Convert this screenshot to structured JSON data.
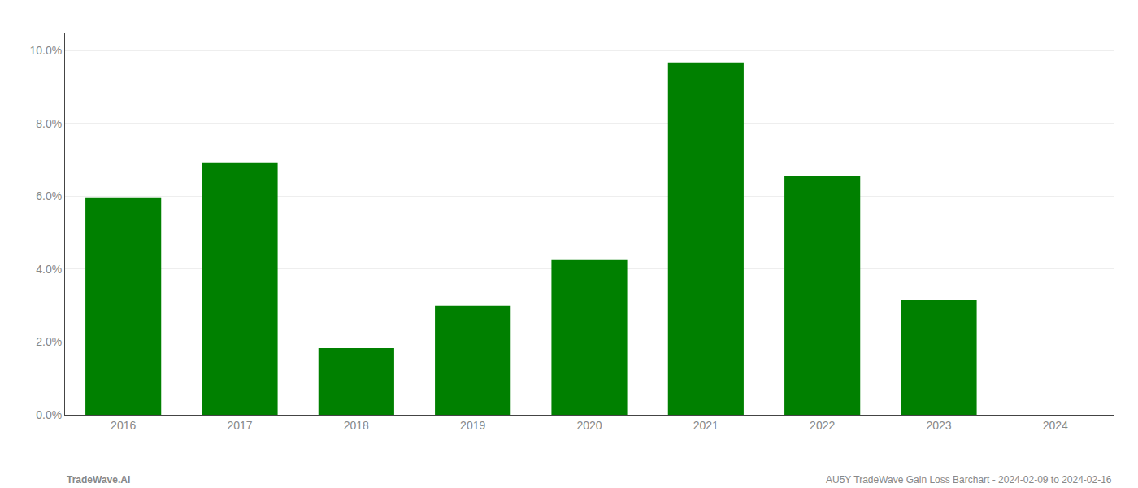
{
  "chart_data": {
    "type": "bar",
    "categories": [
      "2016",
      "2017",
      "2018",
      "2019",
      "2020",
      "2021",
      "2022",
      "2023",
      "2024"
    ],
    "values": [
      0.0597,
      0.0693,
      0.0183,
      0.03,
      0.0425,
      0.0968,
      0.0655,
      0.0315,
      0.0
    ],
    "color": "#008000",
    "ylim": [
      0,
      0.105
    ],
    "yticks": [
      {
        "value": 0.0,
        "label": "0.0%"
      },
      {
        "value": 0.02,
        "label": "2.0%"
      },
      {
        "value": 0.04,
        "label": "4.0%"
      },
      {
        "value": 0.06,
        "label": "6.0%"
      },
      {
        "value": 0.08,
        "label": "8.0%"
      },
      {
        "value": 0.1,
        "label": "10.0%"
      }
    ],
    "grid": true,
    "annotations": [
      "TradeWave.AI",
      "AU5Y TradeWave Gain Loss Barchart - 2024-02-09 to 2024-02-16"
    ]
  }
}
